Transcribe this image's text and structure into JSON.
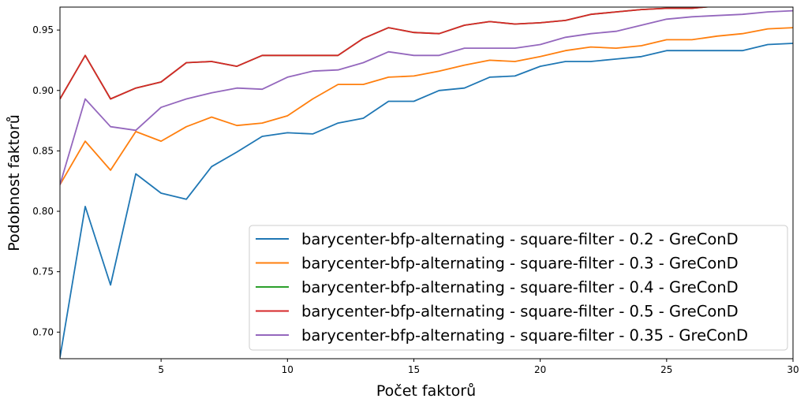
{
  "chart_data": {
    "type": "line",
    "title": "",
    "xlabel": "Počet faktorů",
    "ylabel": "Podobnost faktorů",
    "xlim": [
      1,
      30
    ],
    "ylim": [
      0.678,
      0.969
    ],
    "x_ticks": [
      5,
      10,
      15,
      20,
      25,
      30
    ],
    "y_ticks": [
      0.7,
      0.75,
      0.8,
      0.85,
      0.9,
      0.95
    ],
    "y_tick_labels": [
      "0.70",
      "0.75",
      "0.80",
      "0.85",
      "0.90",
      "0.95"
    ],
    "grid": false,
    "legend_position": "lower-right",
    "x": [
      1,
      2,
      3,
      4,
      5,
      6,
      7,
      8,
      9,
      10,
      11,
      12,
      13,
      14,
      15,
      16,
      17,
      18,
      19,
      20,
      21,
      22,
      23,
      24,
      25,
      26,
      27,
      28,
      29,
      30
    ],
    "series": [
      {
        "name": "barycenter-bfp-alternating - square-filter - 0.2 - GreConD",
        "color": "#1f77b4",
        "values": [
          0.679,
          0.804,
          0.739,
          0.831,
          0.815,
          0.81,
          0.837,
          0.849,
          0.862,
          0.865,
          0.864,
          0.873,
          0.877,
          0.891,
          0.891,
          0.9,
          0.902,
          0.911,
          0.912,
          0.92,
          0.924,
          0.924,
          0.926,
          0.928,
          0.933,
          0.933,
          0.933,
          0.933,
          0.938,
          0.939
        ]
      },
      {
        "name": "barycenter-bfp-alternating - square-filter - 0.3 - GreConD",
        "color": "#ff7f0e",
        "values": [
          0.822,
          0.858,
          0.834,
          0.866,
          0.858,
          0.87,
          0.878,
          0.871,
          0.873,
          0.879,
          0.893,
          0.905,
          0.905,
          0.911,
          0.912,
          0.916,
          0.921,
          0.925,
          0.924,
          0.928,
          0.933,
          0.936,
          0.935,
          0.937,
          0.942,
          0.942,
          0.945,
          0.947,
          0.951,
          0.952
        ]
      },
      {
        "name": "barycenter-bfp-alternating - square-filter - 0.4 - GreConD",
        "color": "#2ca02c",
        "values": [
          0.893,
          0.929,
          0.893,
          0.902,
          0.907,
          0.923,
          0.924,
          0.92,
          0.929,
          0.929,
          0.929,
          0.929,
          0.943,
          0.952,
          0.948,
          0.947,
          0.954,
          0.957,
          0.955,
          0.956,
          0.958,
          0.963,
          0.965,
          0.967,
          0.968,
          0.968,
          0.97,
          0.97,
          0.971,
          0.972
        ]
      },
      {
        "name": "barycenter-bfp-alternating - square-filter - 0.5 - GreConD",
        "color": "#d62728",
        "values": [
          0.893,
          0.929,
          0.893,
          0.902,
          0.907,
          0.923,
          0.924,
          0.92,
          0.929,
          0.929,
          0.929,
          0.929,
          0.943,
          0.952,
          0.948,
          0.947,
          0.954,
          0.957,
          0.955,
          0.956,
          0.958,
          0.963,
          0.965,
          0.967,
          0.968,
          0.968,
          0.97,
          0.97,
          0.971,
          0.972
        ]
      },
      {
        "name": "barycenter-bfp-alternating - square-filter - 0.35 - GreConD",
        "color": "#9467bd",
        "values": [
          0.822,
          0.893,
          0.87,
          0.867,
          0.886,
          0.893,
          0.898,
          0.902,
          0.901,
          0.911,
          0.916,
          0.917,
          0.923,
          0.932,
          0.929,
          0.929,
          0.935,
          0.935,
          0.935,
          0.938,
          0.944,
          0.947,
          0.949,
          0.954,
          0.959,
          0.961,
          0.962,
          0.963,
          0.965,
          0.966
        ]
      }
    ]
  }
}
